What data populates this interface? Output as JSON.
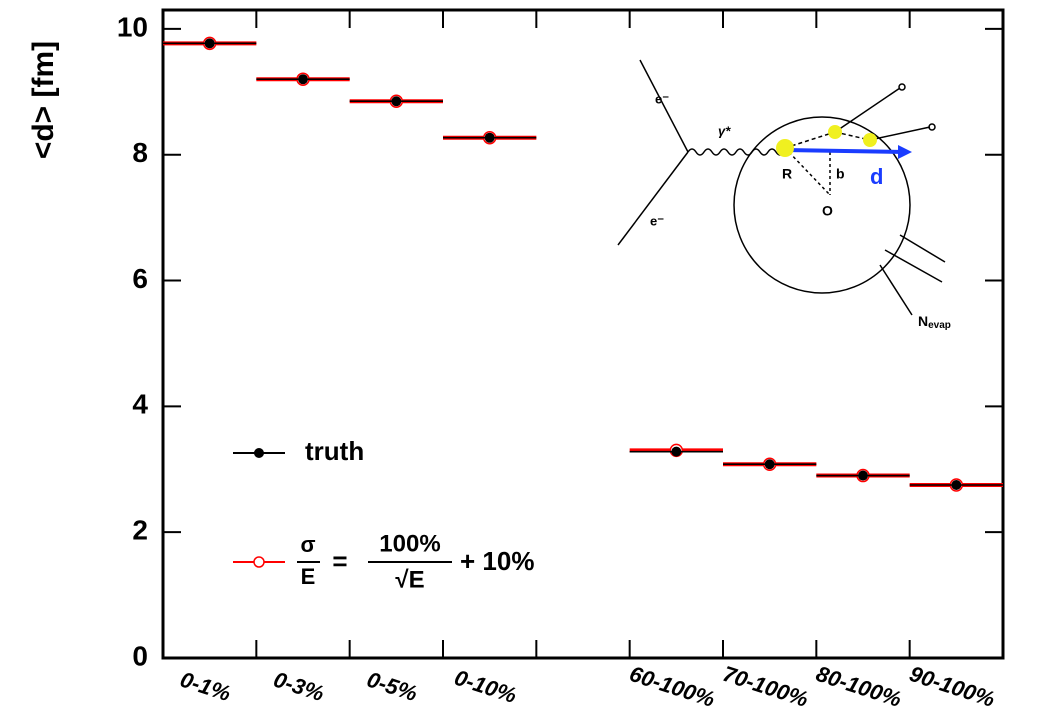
{
  "chart_data": {
    "type": "step-points",
    "y_label": "<d> [fm]",
    "categories": [
      "0-1%",
      "0-3%",
      "0-5%",
      "0-10%",
      null,
      "60-100%",
      "70-100%",
      "80-100%",
      "90-100%"
    ],
    "series": [
      {
        "name": "truth",
        "color": "#000000",
        "values": [
          9.77,
          9.2,
          8.85,
          8.27,
          null,
          3.28,
          3.08,
          2.9,
          2.75
        ]
      },
      {
        "name": {
          "numerator": "σ",
          "denominator": "E",
          "equals": "=",
          "rhs_numerator": "100%",
          "rhs_denominator": "√E",
          "rhs_tail": "+ 10%"
        },
        "color": "#ff0000",
        "values": [
          9.77,
          9.2,
          8.85,
          8.27,
          null,
          3.3,
          3.08,
          2.9,
          2.75
        ]
      }
    ],
    "ylim": [
      0,
      10.3
    ],
    "yticks": [
      0,
      2,
      4,
      6,
      8,
      10
    ],
    "inset": {
      "electron_in": "e⁻",
      "electron_out": "e⁻",
      "photon": "γ*",
      "radius": "R",
      "impact": "b",
      "origin": "O",
      "distance": "d",
      "evaporation": "N",
      "evaporation_sub": "evap"
    }
  }
}
